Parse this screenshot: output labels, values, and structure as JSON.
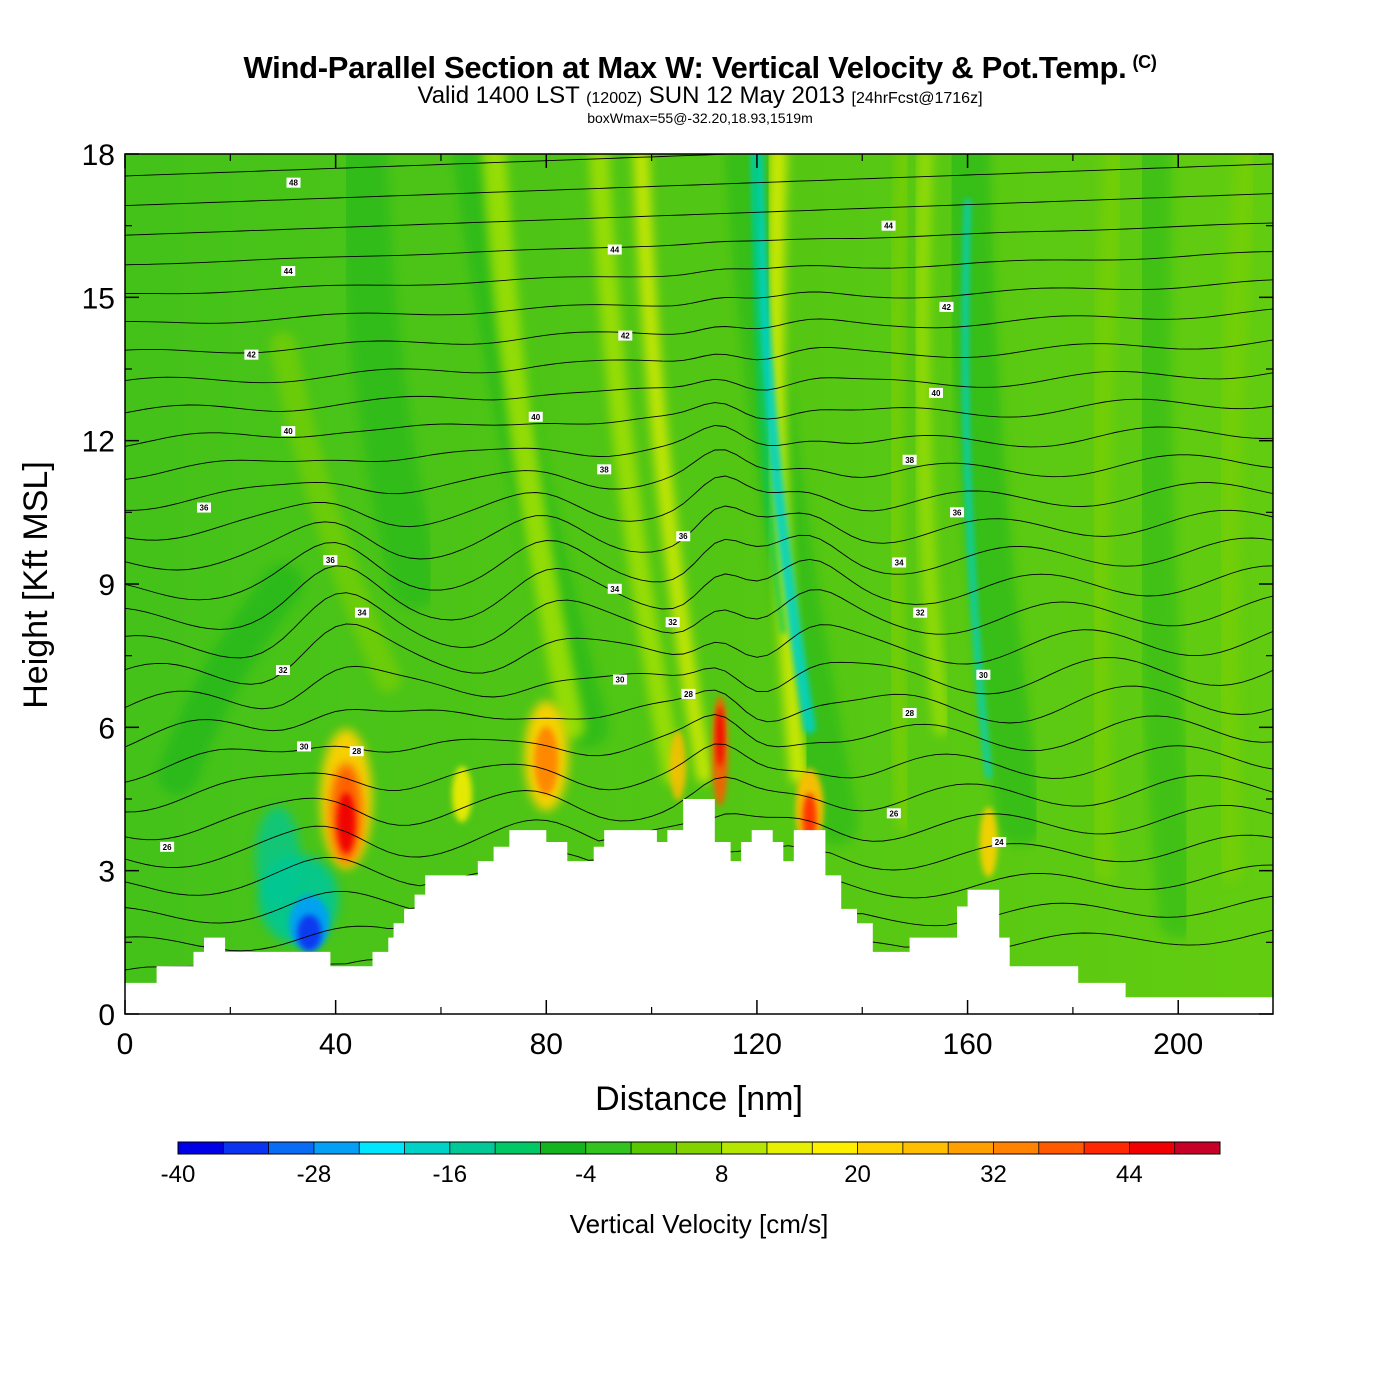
{
  "chart_data": {
    "type": "heatmap",
    "title": "Wind-Parallel Section at Max W: Vertical Velocity & Pot.Temp.",
    "copyright_mark": "(C)",
    "subtitle": {
      "prefix": "Valid 1400 LST",
      "utc": "(1200Z)",
      "date": "SUN 12 May 2013",
      "forecast": "[24hrFcst@1716z]"
    },
    "info": "boxWmax=55@-32.20,18.93,1519m",
    "xlabel": "Distance [nm]",
    "ylabel": "Height [Kft MSL]",
    "xlim": [
      0,
      218
    ],
    "ylim": [
      0,
      18
    ],
    "x_ticks": [
      0,
      40,
      80,
      120,
      160,
      200
    ],
    "y_ticks": [
      0,
      3,
      6,
      9,
      12,
      15,
      18
    ],
    "colorbar": {
      "title": "Vertical Velocity [cm/s]",
      "levels": [
        -40,
        -36,
        -32,
        -28,
        -24,
        -20,
        -16,
        -12,
        -8,
        -4,
        0,
        4,
        8,
        12,
        16,
        20,
        24,
        28,
        32,
        36,
        40,
        44,
        48,
        52
      ],
      "tick_labels": [
        "-40",
        "-28",
        "-16",
        "-4",
        "8",
        "20",
        "32",
        "44"
      ],
      "colors": [
        "#0000e6",
        "#0a34f0",
        "#0a6cf5",
        "#05a0f5",
        "#00e6ff",
        "#00d2c8",
        "#00c896",
        "#00c864",
        "#14b41e",
        "#32c31e",
        "#5ac800",
        "#82d200",
        "#b4e600",
        "#e6f000",
        "#fff000",
        "#ffd200",
        "#ffbe00",
        "#ffa000",
        "#ff8200",
        "#ff5a00",
        "#ff2800",
        "#f00000",
        "#c80028"
      ]
    },
    "terrain": [
      [
        0,
        0.65
      ],
      [
        6,
        0.65
      ],
      [
        6,
        1.0
      ],
      [
        13,
        1.0
      ],
      [
        13,
        1.3
      ],
      [
        15,
        1.3
      ],
      [
        15,
        1.6
      ],
      [
        19,
        1.6
      ],
      [
        19,
        1.3
      ],
      [
        39,
        1.3
      ],
      [
        39,
        1.0
      ],
      [
        47,
        1.0
      ],
      [
        47,
        1.3
      ],
      [
        50,
        1.3
      ],
      [
        50,
        1.6
      ],
      [
        51,
        1.6
      ],
      [
        51,
        1.9
      ],
      [
        53,
        1.9
      ],
      [
        53,
        2.2
      ],
      [
        55,
        2.2
      ],
      [
        55,
        2.5
      ],
      [
        57,
        2.5
      ],
      [
        57,
        2.9
      ],
      [
        67,
        2.9
      ],
      [
        67,
        3.2
      ],
      [
        70,
        3.2
      ],
      [
        70,
        3.5
      ],
      [
        73,
        3.5
      ],
      [
        73,
        3.85
      ],
      [
        80,
        3.85
      ],
      [
        80,
        3.6
      ],
      [
        84,
        3.6
      ],
      [
        84,
        3.2
      ],
      [
        89,
        3.2
      ],
      [
        89,
        3.5
      ],
      [
        91,
        3.5
      ],
      [
        91,
        3.85
      ],
      [
        101,
        3.85
      ],
      [
        101,
        3.6
      ],
      [
        103,
        3.6
      ],
      [
        103,
        3.85
      ],
      [
        106,
        3.85
      ],
      [
        106,
        4.5
      ],
      [
        112,
        4.5
      ],
      [
        112,
        3.6
      ],
      [
        115,
        3.6
      ],
      [
        115,
        3.2
      ],
      [
        117,
        3.2
      ],
      [
        117,
        3.6
      ],
      [
        119,
        3.6
      ],
      [
        119,
        3.85
      ],
      [
        123,
        3.85
      ],
      [
        123,
        3.6
      ],
      [
        125,
        3.6
      ],
      [
        125,
        3.2
      ],
      [
        127,
        3.2
      ],
      [
        127,
        3.85
      ],
      [
        133,
        3.85
      ],
      [
        133,
        2.9
      ],
      [
        136,
        2.9
      ],
      [
        136,
        2.2
      ],
      [
        139,
        2.2
      ],
      [
        139,
        1.9
      ],
      [
        142,
        1.9
      ],
      [
        142,
        1.3
      ],
      [
        149,
        1.3
      ],
      [
        149,
        1.6
      ],
      [
        158,
        1.6
      ],
      [
        158,
        2.25
      ],
      [
        160,
        2.25
      ],
      [
        160,
        2.6
      ],
      [
        166,
        2.6
      ],
      [
        166,
        1.6
      ],
      [
        168,
        1.6
      ],
      [
        168,
        1.0
      ],
      [
        181,
        1.0
      ],
      [
        181,
        0.65
      ],
      [
        190,
        0.65
      ],
      [
        190,
        0.35
      ],
      [
        218,
        0.35
      ]
    ],
    "isentrope_labels": [
      {
        "x": 32,
        "y": 17.4,
        "text": "48"
      },
      {
        "x": 31,
        "y": 15.55,
        "text": "44"
      },
      {
        "x": 93,
        "y": 16.0,
        "text": "44"
      },
      {
        "x": 145,
        "y": 16.5,
        "text": "44"
      },
      {
        "x": 24,
        "y": 13.8,
        "text": "42"
      },
      {
        "x": 95,
        "y": 14.2,
        "text": "42"
      },
      {
        "x": 156,
        "y": 14.8,
        "text": "42"
      },
      {
        "x": 31,
        "y": 12.2,
        "text": "40"
      },
      {
        "x": 78,
        "y": 12.5,
        "text": "40"
      },
      {
        "x": 154,
        "y": 13.0,
        "text": "40"
      },
      {
        "x": 15,
        "y": 10.6,
        "text": "36"
      },
      {
        "x": 91,
        "y": 11.4,
        "text": "38"
      },
      {
        "x": 149,
        "y": 11.6,
        "text": "38"
      },
      {
        "x": 39,
        "y": 9.5,
        "text": "36"
      },
      {
        "x": 106,
        "y": 10.0,
        "text": "36"
      },
      {
        "x": 158,
        "y": 10.5,
        "text": "36"
      },
      {
        "x": 45,
        "y": 8.4,
        "text": "34"
      },
      {
        "x": 93,
        "y": 8.9,
        "text": "34"
      },
      {
        "x": 147,
        "y": 9.45,
        "text": "34"
      },
      {
        "x": 30,
        "y": 7.2,
        "text": "32"
      },
      {
        "x": 104,
        "y": 8.2,
        "text": "32"
      },
      {
        "x": 151,
        "y": 8.4,
        "text": "32"
      },
      {
        "x": 34,
        "y": 5.6,
        "text": "30"
      },
      {
        "x": 94,
        "y": 7.0,
        "text": "30"
      },
      {
        "x": 163,
        "y": 7.1,
        "text": "30"
      },
      {
        "x": 44,
        "y": 5.5,
        "text": "28"
      },
      {
        "x": 107,
        "y": 6.7,
        "text": "28"
      },
      {
        "x": 149,
        "y": 6.3,
        "text": "28"
      },
      {
        "x": 146,
        "y": 4.2,
        "text": "26"
      },
      {
        "x": 8,
        "y": 3.5,
        "text": "26"
      },
      {
        "x": 166,
        "y": 3.6,
        "text": "24"
      }
    ]
  }
}
